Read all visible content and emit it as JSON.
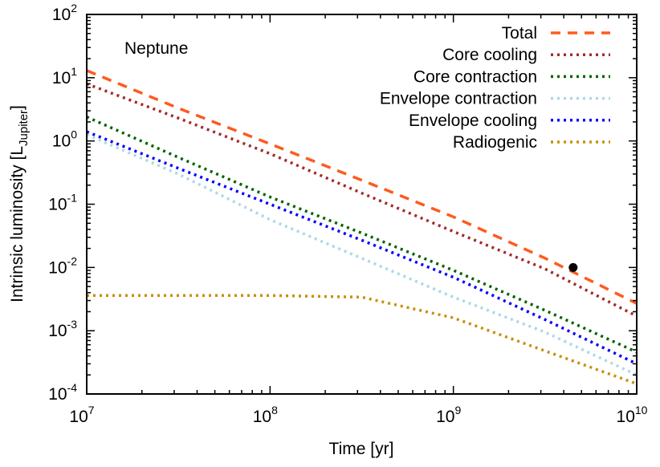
{
  "chart_data": {
    "type": "line",
    "xlabel": "Time [yr]",
    "ylabel": "Intrinsic luminosity [L",
    "ylabel_sub": "Jupiter",
    "ylabel_end": "]",
    "annotation": "Neptune",
    "x_scale": "log",
    "y_scale": "log",
    "xlim": [
      10000000.0,
      10000000000.0
    ],
    "ylim": [
      0.0001,
      100.0
    ],
    "x_ticks": [
      {
        "base": "10",
        "exp": "7"
      },
      {
        "base": "10",
        "exp": "8"
      },
      {
        "base": "10",
        "exp": "9"
      },
      {
        "base": "10",
        "exp": "10"
      }
    ],
    "y_ticks": [
      {
        "base": "10",
        "exp": "-4"
      },
      {
        "base": "10",
        "exp": "-3"
      },
      {
        "base": "10",
        "exp": "-2"
      },
      {
        "base": "10",
        "exp": "-1"
      },
      {
        "base": "10",
        "exp": "0"
      },
      {
        "base": "10",
        "exp": "1"
      },
      {
        "base": "10",
        "exp": "2"
      }
    ],
    "grid": false,
    "legend_position": "top-right",
    "x": [
      10000000.0,
      31600000.0,
      100000000.0,
      316000000.0,
      1000000000.0,
      3160000000.0,
      10000000000.0
    ],
    "series": [
      {
        "name": "Total",
        "color": "#ff5a1f",
        "style": "dashed",
        "values": [
          13,
          3.3,
          0.9,
          0.24,
          0.063,
          0.014,
          0.0027
        ]
      },
      {
        "name": "Core cooling",
        "color": "#a52a2a",
        "style": "dotted",
        "values": [
          8,
          2.3,
          0.63,
          0.15,
          0.037,
          0.0095,
          0.0017
        ]
      },
      {
        "name": "Core contraction",
        "color": "#006400",
        "style": "dotted",
        "values": [
          2.4,
          0.55,
          0.13,
          0.035,
          0.009,
          0.0021,
          0.00046
        ]
      },
      {
        "name": "Envelope contraction",
        "color": "#add8e6",
        "style": "dotted",
        "values": [
          1.26,
          0.3,
          0.057,
          0.014,
          0.0034,
          0.00095,
          0.0002
        ]
      },
      {
        "name": "Envelope cooling",
        "color": "#0000ff",
        "style": "dotted",
        "values": [
          1.4,
          0.37,
          0.1,
          0.027,
          0.007,
          0.0015,
          0.0003
        ]
      },
      {
        "name": "Radiogenic",
        "color": "#c8900a",
        "style": "dotted",
        "values": [
          0.0036,
          0.0036,
          0.0036,
          0.0034,
          0.0016,
          0.00048,
          0.000145
        ]
      }
    ],
    "points": [
      {
        "x": 4500000000.0,
        "y": 0.01,
        "color": "#000000"
      }
    ]
  }
}
